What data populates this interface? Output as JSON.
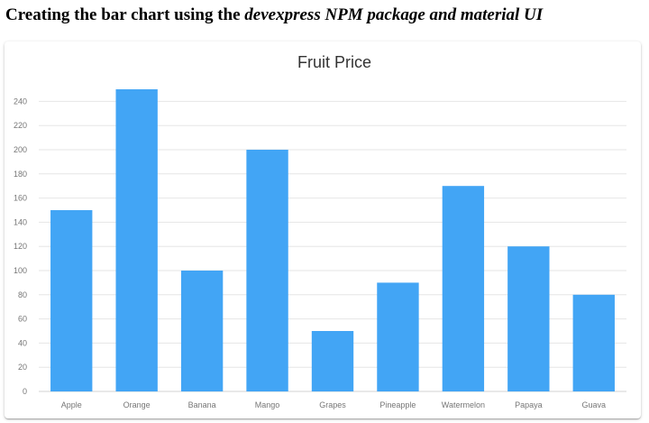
{
  "heading": {
    "normal": "Creating the bar chart using the ",
    "emphasis": "devexpress NPM package and material UI"
  },
  "colors": {
    "bar": "#42a5f5",
    "grid": "#e6e6e6",
    "axis": "#d3d3d3",
    "text": "#767676"
  },
  "chart_data": {
    "type": "bar",
    "title": "Fruit Price",
    "xlabel": "",
    "ylabel": "",
    "categories": [
      "Apple",
      "Orange",
      "Banana",
      "Mango",
      "Grapes",
      "Pineapple",
      "Watermelon",
      "Papaya",
      "Guava"
    ],
    "values": [
      150,
      250,
      100,
      200,
      50,
      90,
      170,
      120,
      80
    ],
    "ylim": [
      0,
      250
    ],
    "yticks": [
      0,
      20,
      40,
      60,
      80,
      100,
      120,
      140,
      160,
      180,
      200,
      220,
      240
    ],
    "grid": true,
    "legend": "none"
  }
}
